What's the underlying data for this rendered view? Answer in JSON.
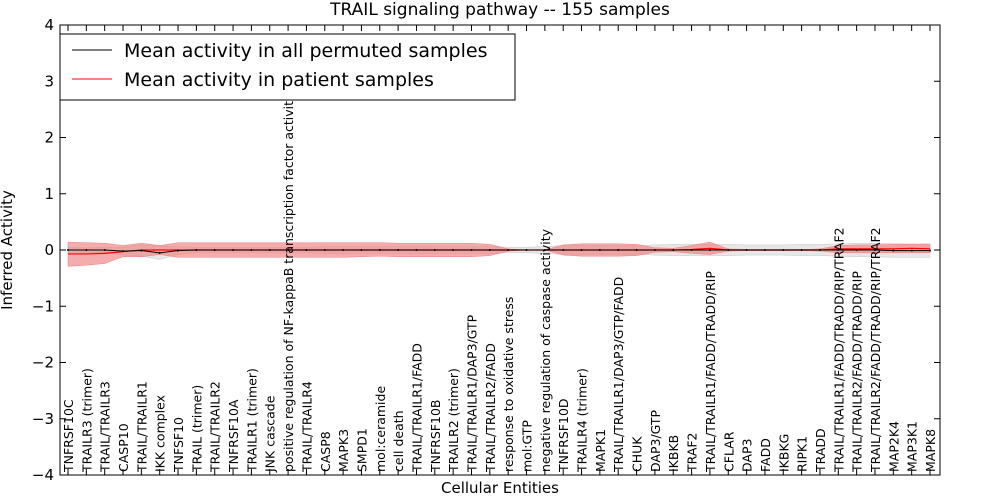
{
  "chart_data": {
    "type": "line",
    "title": "TRAIL signaling pathway -- 155 samples",
    "xlabel": "Cellular Entities",
    "ylabel": "Inferred Activity",
    "ylim": [
      -4,
      4
    ],
    "yticks": [
      "4",
      "3",
      "2",
      "1",
      "0",
      "−1",
      "−2",
      "−3",
      "−4"
    ],
    "ytick_values": [
      4,
      3,
      2,
      1,
      0,
      -1,
      -2,
      -3,
      -4
    ],
    "grid": false,
    "legend_position": "top-left",
    "categories": [
      "TNFRSF10C",
      "TRAILR3 (trimer)",
      "TRAIL/TRAILR3",
      "CASP10",
      "TRAIL/TRAILR1",
      "IKK complex",
      "TNFSF10",
      "TRAIL (trimer)",
      "TRAIL/TRAILR2",
      "TNFRSF10A",
      "TRAILR1 (trimer)",
      "JNK cascade",
      "positive regulation of NF-kappaB transcription factor activity",
      "TRAIL/TRAILR4",
      "CASP8",
      "MAPK3",
      "SMPD1",
      "mol:ceramide",
      "cell death",
      "TRAIL/TRAILR1/FADD",
      "TNFRSF10B",
      "TRAILR2 (trimer)",
      "TRAIL/TRAILR1/DAP3/GTP",
      "TRAIL/TRAILR2/FADD",
      "response to oxidative stress",
      "mol:GTP",
      "negative regulation of caspase activity",
      "TNFRSF10D",
      "TRAILR4 (trimer)",
      "MAPK1",
      "TRAIL/TRAILR1/DAP3/GTP/FADD",
      "CHUK",
      "DAP3/GTP",
      "IKBKB",
      "TRAF2",
      "TRAIL/TRAILR1/FADD/TRADD/RIP",
      "CFLAR",
      "DAP3",
      "FADD",
      "IKBKG",
      "RIPK1",
      "TRADD",
      "TRAIL/TRAILR1/FADD/TRADD/RIP/TRAF2",
      "TRAIL/TRAILR2/FADD/TRADD/RIP",
      "TRAIL/TRAILR2/FADD/TRADD/RIP/TRAF2",
      "MAP2K4",
      "MAP3K1",
      "MAPK8"
    ],
    "series": [
      {
        "name": "Mean activity in all permuted samples",
        "color": "#000000",
        "values": [
          0,
          0,
          0,
          -0.02,
          -0.01,
          -0.05,
          -0.01,
          0,
          0,
          0,
          0,
          0,
          0,
          0,
          0,
          0,
          0,
          0,
          0,
          0,
          0,
          0,
          0,
          0,
          0,
          0,
          0,
          0,
          0,
          0,
          0,
          0,
          0,
          0,
          0,
          0,
          0,
          0,
          0,
          0,
          0,
          0,
          0,
          0,
          0,
          -0.01,
          -0.01,
          -0.01
        ],
        "std": [
          0.04,
          0.04,
          0.05,
          0.07,
          0.1,
          0.12,
          0.07,
          0.05,
          0.05,
          0.05,
          0.05,
          0.05,
          0.05,
          0.05,
          0.06,
          0.07,
          0.06,
          0.06,
          0.06,
          0.07,
          0.06,
          0.06,
          0.06,
          0.06,
          0.05,
          0.05,
          0.06,
          0.08,
          0.08,
          0.08,
          0.08,
          0.08,
          0.09,
          0.1,
          0.1,
          0.1,
          0.1,
          0.09,
          0.09,
          0.09,
          0.1,
          0.1,
          0.11,
          0.12,
          0.12,
          0.12,
          0.12,
          0.12
        ]
      },
      {
        "name": "Mean activity in patient samples",
        "color": "#ff0000",
        "band_color": "#f08080",
        "values": [
          -0.07,
          -0.07,
          -0.06,
          -0.03,
          0,
          0,
          0,
          0,
          0,
          0,
          0,
          0,
          0,
          0,
          0,
          0,
          0,
          0,
          0,
          0,
          0,
          0,
          0,
          0,
          0,
          0,
          0,
          0,
          0,
          0,
          0,
          0,
          0,
          0,
          0.01,
          0.03,
          0,
          0,
          0,
          0,
          0,
          0,
          0.02,
          0.02,
          0.02,
          0.02,
          0.03,
          0.02
        ],
        "upper": [
          0.14,
          0.13,
          0.12,
          0.08,
          0.12,
          0.08,
          0.13,
          0.13,
          0.13,
          0.13,
          0.13,
          0.13,
          0.13,
          0.13,
          0.13,
          0.13,
          0.13,
          0.13,
          0.12,
          0.12,
          0.12,
          0.12,
          0.12,
          0.1,
          0.02,
          0,
          0,
          0.09,
          0.11,
          0.11,
          0.11,
          0.1,
          0.04,
          0.03,
          0.08,
          0.14,
          0.02,
          0.01,
          0.01,
          0.01,
          0.01,
          0.02,
          0.08,
          0.09,
          0.09,
          0.1,
          0.1,
          0.1
        ],
        "lower": [
          -0.29,
          -0.27,
          -0.24,
          -0.12,
          -0.12,
          -0.08,
          -0.13,
          -0.13,
          -0.13,
          -0.13,
          -0.13,
          -0.13,
          -0.13,
          -0.13,
          -0.13,
          -0.13,
          -0.12,
          -0.11,
          -0.12,
          -0.12,
          -0.12,
          -0.12,
          -0.12,
          -0.1,
          -0.02,
          0,
          0,
          -0.09,
          -0.11,
          -0.11,
          -0.11,
          -0.1,
          -0.04,
          -0.03,
          -0.06,
          -0.08,
          -0.02,
          -0.01,
          -0.01,
          -0.01,
          -0.01,
          -0.02,
          -0.05,
          -0.05,
          -0.05,
          -0.05,
          -0.05,
          -0.05
        ]
      }
    ]
  }
}
